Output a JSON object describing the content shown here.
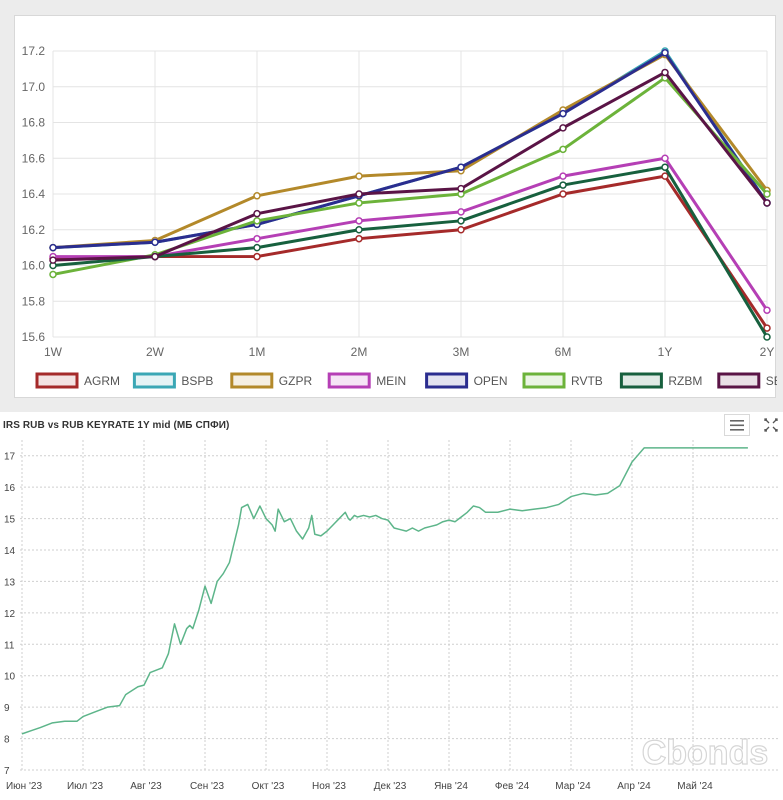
{
  "chart_data": [
    {
      "type": "line",
      "title": "",
      "categories": [
        "1W",
        "2W",
        "1M",
        "2M",
        "3M",
        "6M",
        "1Y",
        "2Y"
      ],
      "ylim": [
        15.6,
        17.2
      ],
      "yticks": [
        "15.6",
        "15.8",
        "16.0",
        "16.2",
        "16.4",
        "16.6",
        "16.8",
        "17.0",
        "17.2"
      ],
      "grid": true,
      "legend_position": "bottom",
      "series": [
        {
          "name": "AGRM",
          "color": "#a52a2a",
          "values": [
            16.04,
            16.05,
            16.05,
            16.15,
            16.2,
            16.4,
            16.5,
            15.65
          ]
        },
        {
          "name": "BSPB",
          "color": "#3aa7b5",
          "values": [
            16.1,
            16.13,
            16.23,
            16.39,
            16.55,
            16.85,
            17.2,
            16.35
          ]
        },
        {
          "name": "GZPR",
          "color": "#b3892a",
          "values": [
            16.1,
            16.14,
            16.39,
            16.5,
            16.53,
            16.87,
            17.18,
            16.42
          ]
        },
        {
          "name": "MEIN",
          "color": "#b53fb5",
          "values": [
            16.05,
            16.05,
            16.15,
            16.25,
            16.3,
            16.5,
            16.6,
            15.75
          ]
        },
        {
          "name": "OPEN",
          "color": "#2b2d8f",
          "values": [
            16.1,
            16.13,
            16.23,
            16.39,
            16.55,
            16.85,
            17.19,
            16.35
          ]
        },
        {
          "name": "RVTB",
          "color": "#6cb33a",
          "values": [
            15.95,
            16.06,
            16.25,
            16.35,
            16.4,
            16.65,
            17.05,
            16.4
          ]
        },
        {
          "name": "RZBM",
          "color": "#17603e",
          "values": [
            16.0,
            16.05,
            16.1,
            16.2,
            16.25,
            16.45,
            16.55,
            15.6
          ]
        },
        {
          "name": "SBER",
          "color": "#5a1446",
          "values": [
            16.03,
            16.05,
            16.29,
            16.4,
            16.43,
            16.77,
            17.08,
            16.35
          ]
        }
      ]
    },
    {
      "type": "line",
      "title": "IRS RUB vs RUB KEYRATE 1Y mid (МБ СПФИ)",
      "x_labels": [
        "Июн '23",
        "Июл '23",
        "Авг '23",
        "Сен '23",
        "Окт '23",
        "Ноя '23",
        "Дек '23",
        "Янв '24",
        "Фев '24",
        "Мар '24",
        "Апр '24",
        "Май '24"
      ],
      "ylim": [
        7,
        17.5
      ],
      "yticks": [
        "7",
        "8",
        "9",
        "10",
        "11",
        "12",
        "13",
        "14",
        "15",
        "16",
        "17"
      ],
      "grid": true,
      "series": [
        {
          "name": "IRS RUB vs RUB KEYRATE 1Y mid",
          "color": "#5db58a",
          "x": [
            0,
            0.15,
            0.3,
            0.5,
            0.7,
            0.9,
            1.0,
            1.2,
            1.4,
            1.6,
            1.7,
            1.9,
            2.0,
            2.1,
            2.3,
            2.4,
            2.5,
            2.6,
            2.7,
            2.75,
            2.8,
            2.9,
            3.0,
            3.1,
            3.2,
            3.3,
            3.4,
            3.45,
            3.5,
            3.55,
            3.6,
            3.7,
            3.8,
            3.9,
            4.0,
            4.1,
            4.15,
            4.2,
            4.3,
            4.4,
            4.5,
            4.6,
            4.7,
            4.75,
            4.8,
            4.9,
            5.0,
            5.1,
            5.2,
            5.3,
            5.35,
            5.38,
            5.45,
            5.5,
            5.6,
            5.7,
            5.8,
            5.9,
            6.0,
            6.1,
            6.2,
            6.3,
            6.4,
            6.5,
            6.6,
            6.7,
            6.8,
            6.9,
            7.0,
            7.1,
            7.2,
            7.3,
            7.4,
            7.5,
            7.6,
            7.8,
            8.0,
            8.2,
            8.4,
            8.6,
            8.8,
            9.0,
            9.2,
            9.4,
            9.6,
            9.8,
            10.0,
            10.2,
            10.4,
            10.6,
            10.8,
            11.0,
            11.2,
            11.4,
            11.6,
            11.8,
            11.9
          ],
          "values": [
            8.15,
            8.25,
            8.35,
            8.5,
            8.55,
            8.55,
            8.7,
            8.85,
            9.0,
            9.05,
            9.4,
            9.65,
            9.7,
            10.1,
            10.25,
            10.7,
            11.65,
            11.0,
            11.5,
            11.6,
            11.5,
            12.1,
            12.85,
            12.3,
            13.0,
            13.25,
            13.6,
            14.0,
            14.4,
            14.8,
            15.35,
            15.45,
            15.0,
            15.4,
            15.0,
            14.8,
            14.6,
            15.3,
            14.9,
            15.0,
            14.6,
            14.35,
            14.7,
            15.1,
            14.5,
            14.45,
            14.6,
            14.8,
            15.0,
            15.2,
            15.0,
            14.95,
            15.1,
            15.05,
            15.1,
            15.05,
            15.1,
            15.0,
            14.95,
            14.7,
            14.65,
            14.6,
            14.7,
            14.6,
            14.7,
            14.75,
            14.8,
            14.9,
            14.95,
            14.9,
            15.05,
            15.2,
            15.4,
            15.35,
            15.2,
            15.2,
            15.3,
            15.25,
            15.3,
            15.35,
            15.45,
            15.7,
            15.8,
            15.75,
            15.8,
            16.05,
            16.8,
            17.25,
            17.25,
            17.25,
            17.25,
            17.25,
            17.25,
            17.25,
            17.25,
            17.25,
            17.25
          ]
        }
      ],
      "watermark": "Cbonds"
    }
  ],
  "bottom_title": "IRS RUB vs RUB KEYRATE 1Y mid (МБ СПФИ)",
  "icons": {
    "menu": "hamburger-menu-icon",
    "expand": "expand-icon"
  }
}
